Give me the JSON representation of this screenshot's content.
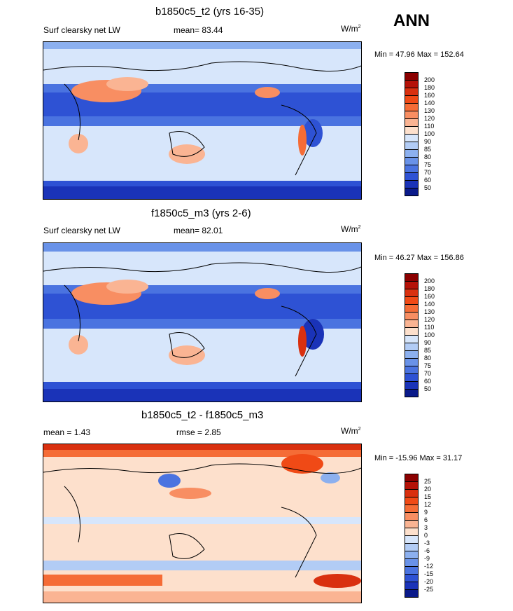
{
  "season": "ANN",
  "panels": [
    {
      "title": "b1850c5_t2 (yrs 16-35)",
      "left_label": "Surf clearsky net LW",
      "center_label": "mean=  83.44",
      "units": "W/m",
      "units_sup": "2",
      "minmax": "Min =  47.96 Max = 152.64",
      "levels": [
        "200",
        "180",
        "160",
        "140",
        "130",
        "120",
        "110",
        "100",
        "90",
        "85",
        "80",
        "75",
        "70",
        "60",
        "50"
      ],
      "colors": [
        "#8b0000",
        "#b51208",
        "#d9300f",
        "#f04a16",
        "#f56c36",
        "#f88e62",
        "#fab493",
        "#fde0cc",
        "#d7e6fb",
        "#b2ccf5",
        "#8cb0ef",
        "#6992e8",
        "#4a73e0",
        "#2e52d4",
        "#1a33b8",
        "#0a1a8a"
      ]
    },
    {
      "title": "f1850c5_m3 (yrs 2-6)",
      "left_label": "Surf clearsky net LW",
      "center_label": "mean=  82.01",
      "units": "W/m",
      "units_sup": "2",
      "minmax": "Min =  46.27 Max = 156.86",
      "levels": [
        "200",
        "180",
        "160",
        "140",
        "130",
        "120",
        "110",
        "100",
        "90",
        "85",
        "80",
        "75",
        "70",
        "60",
        "50"
      ],
      "colors": [
        "#8b0000",
        "#b51208",
        "#d9300f",
        "#f04a16",
        "#f56c36",
        "#f88e62",
        "#fab493",
        "#fde0cc",
        "#d7e6fb",
        "#b2ccf5",
        "#8cb0ef",
        "#6992e8",
        "#4a73e0",
        "#2e52d4",
        "#1a33b8",
        "#0a1a8a"
      ]
    },
    {
      "title": "b1850c5_t2 - f1850c5_m3",
      "left_label": "mean =   1.43",
      "center_label": "rmse =   2.85",
      "units": "W/m",
      "units_sup": "2",
      "minmax": "Min = -15.96 Max =  31.17",
      "levels": [
        "25",
        "20",
        "15",
        "12",
        "9",
        "6",
        "3",
        "0",
        "-3",
        "-6",
        "-9",
        "-12",
        "-15",
        "-20",
        "-25"
      ],
      "colors": [
        "#8b0000",
        "#b51208",
        "#d9300f",
        "#f04a16",
        "#f56c36",
        "#f88e62",
        "#fab493",
        "#fde0cc",
        "#d7e6fb",
        "#b2ccf5",
        "#8cb0ef",
        "#6992e8",
        "#4a73e0",
        "#2e52d4",
        "#1a33b8",
        "#0a1a8a"
      ]
    }
  ],
  "chart_data": [
    {
      "type": "heatmap",
      "title": "b1850c5_t2 (yrs 16-35)",
      "variable": "Surf clearsky net LW",
      "units": "W/m2",
      "mean": 83.44,
      "min": 47.96,
      "max": 152.64,
      "contour_levels": [
        50,
        60,
        70,
        75,
        80,
        85,
        90,
        100,
        110,
        120,
        130,
        140,
        160,
        180,
        200
      ]
    },
    {
      "type": "heatmap",
      "title": "f1850c5_m3 (yrs 2-6)",
      "variable": "Surf clearsky net LW",
      "units": "W/m2",
      "mean": 82.01,
      "min": 46.27,
      "max": 156.86,
      "contour_levels": [
        50,
        60,
        70,
        75,
        80,
        85,
        90,
        100,
        110,
        120,
        130,
        140,
        160,
        180,
        200
      ]
    },
    {
      "type": "heatmap",
      "title": "b1850c5_t2 - f1850c5_m3",
      "units": "W/m2",
      "mean": 1.43,
      "rmse": 2.85,
      "min": -15.96,
      "max": 31.17,
      "contour_levels": [
        -25,
        -20,
        -15,
        -12,
        -9,
        -6,
        -3,
        0,
        3,
        6,
        9,
        12,
        15,
        20,
        25
      ]
    }
  ]
}
